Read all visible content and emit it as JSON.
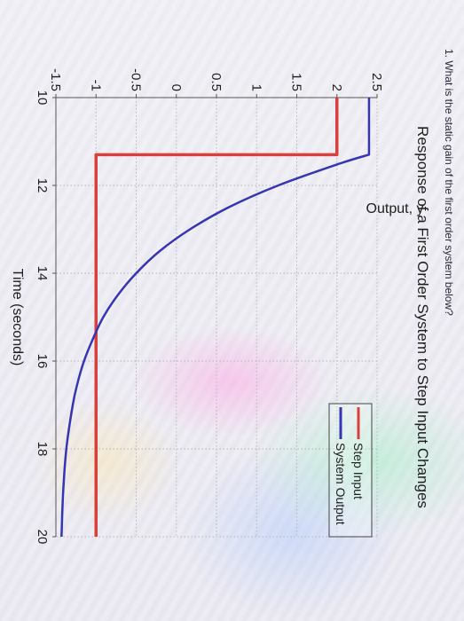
{
  "question": "1. What is the static gain of the first order system below?",
  "colors": {
    "step": "#d8403c",
    "output": "#3535b5",
    "grid": "#b5b5b5",
    "axis": "#555555",
    "text": "#1e1e1e"
  },
  "chart_data": {
    "type": "line",
    "title": "Response of a First Order System to Step Input Changes",
    "xlabel": "Time (seconds)",
    "ylabel": "Output, y",
    "xlim": [
      10,
      20
    ],
    "ylim": [
      -1.5,
      2.5
    ],
    "xticks": [
      10,
      12,
      14,
      16,
      18,
      20
    ],
    "xtick_labels": [
      "10",
      "12",
      "14",
      "16",
      "18",
      "20"
    ],
    "yticks": [
      -1.5,
      -1,
      -0.5,
      0,
      0.5,
      1,
      1.5,
      2,
      2.5
    ],
    "ytick_labels": [
      "-1.5",
      "-1",
      "-0.5",
      "0",
      "0.5",
      "1",
      "1.5",
      "2",
      "2.5"
    ],
    "grid": true,
    "legend_position": "top-right",
    "series": [
      {
        "name": "Step Input",
        "color": "#d8403c",
        "x": [
          10,
          11.3,
          11.3,
          20
        ],
        "y": [
          2,
          2,
          -1,
          -1
        ]
      },
      {
        "name": "System Output",
        "color": "#3535b5",
        "x": [
          10,
          11.3,
          11.5,
          12,
          12.5,
          13,
          13.5,
          14,
          14.5,
          15,
          15.5,
          16,
          16.5,
          17,
          18,
          19,
          20
        ],
        "y": [
          2.4,
          2.4,
          2.04,
          1.27,
          0.65,
          0.17,
          -0.21,
          -0.5,
          -0.73,
          -0.91,
          -1.04,
          -1.15,
          -1.23,
          -1.29,
          -1.37,
          -1.41,
          -1.43
        ]
      }
    ]
  }
}
